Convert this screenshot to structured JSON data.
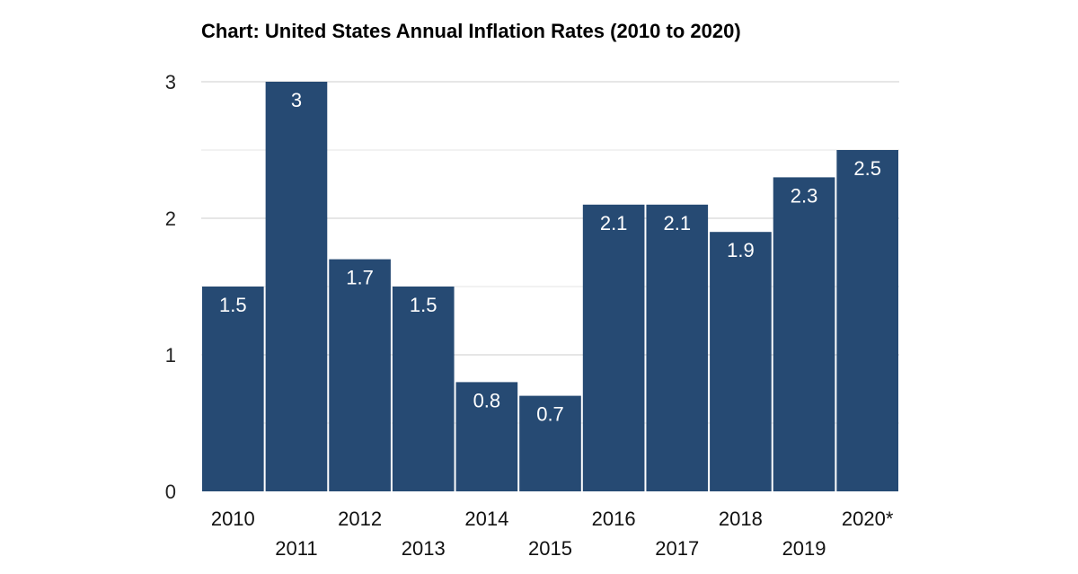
{
  "chart_data": {
    "type": "bar",
    "title": "Chart: United States Annual Inflation Rates (2010 to 2020)",
    "xlabel": "",
    "ylabel": "",
    "categories": [
      "2010",
      "2011",
      "2012",
      "2013",
      "2014",
      "2015",
      "2016",
      "2017",
      "2018",
      "2019",
      "2020*"
    ],
    "values": [
      1.5,
      3,
      1.7,
      1.5,
      0.8,
      0.7,
      2.1,
      2.1,
      1.9,
      2.3,
      2.5
    ],
    "data_labels": [
      "1.5",
      "3",
      "1.7",
      "1.5",
      "0.8",
      "0.7",
      "2.1",
      "2.1",
      "1.9",
      "2.3",
      "2.5"
    ],
    "ylim": [
      0,
      3
    ],
    "yticks": [
      0,
      1,
      2,
      3
    ],
    "grid": true,
    "legend": "none",
    "bar_color": "#264a73",
    "data_label_color": "#ffffff",
    "grid_color": "#cccccc",
    "minor_grid_color": "#e6e6e6"
  }
}
